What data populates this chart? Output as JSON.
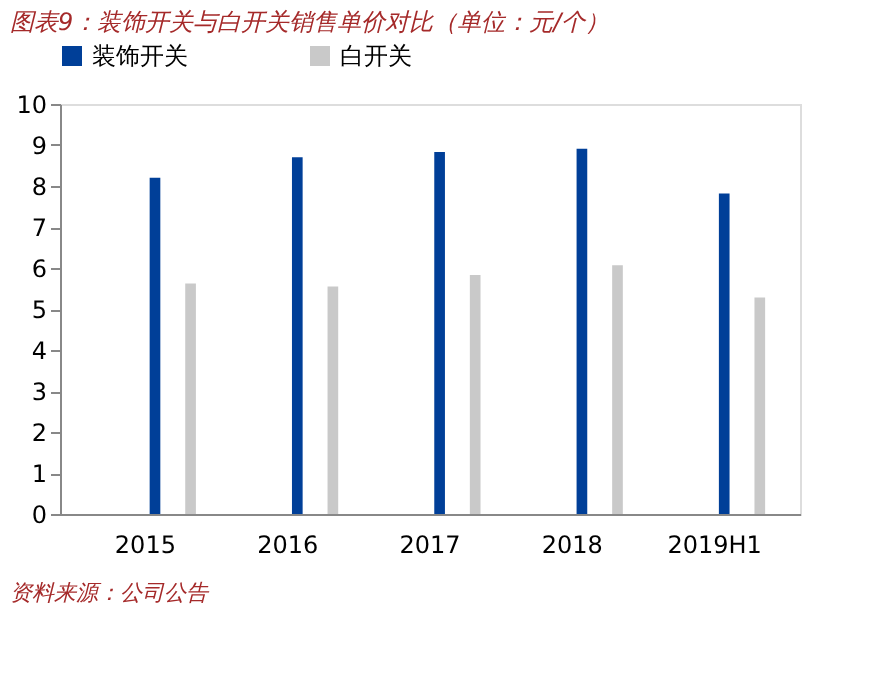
{
  "chart_data": {
    "type": "bar",
    "title": "图表9：装饰开关与白开关销售单价对比（单位：元/个）",
    "categories": [
      "2015",
      "2016",
      "2017",
      "2018",
      "2019H1"
    ],
    "series": [
      {
        "name": "装饰开关",
        "color": "#003f98",
        "values": [
          8.2,
          8.7,
          8.83,
          8.91,
          7.82
        ]
      },
      {
        "name": "白开关",
        "color": "#c9c9c9",
        "values": [
          5.62,
          5.55,
          5.83,
          6.07,
          5.28
        ]
      }
    ],
    "ylim": [
      0,
      10
    ],
    "yticks": [
      0,
      1,
      2,
      3,
      4,
      5,
      6,
      7,
      8,
      9,
      10
    ],
    "grid": false,
    "legend": "top",
    "annotations": [
      "资料来源：公司公告"
    ]
  }
}
